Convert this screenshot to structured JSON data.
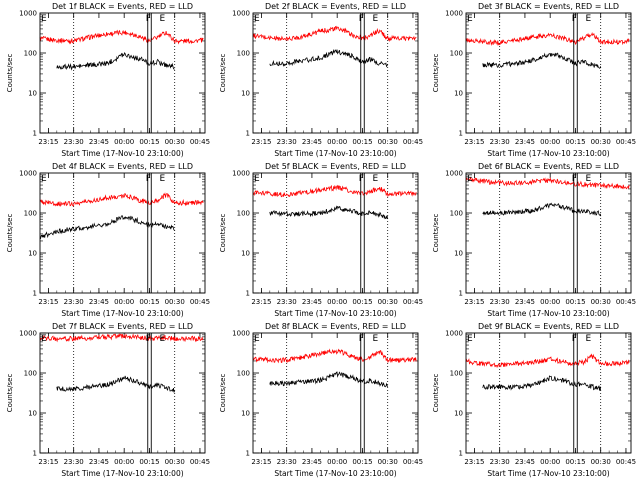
{
  "chart_data": [
    {
      "type": "line",
      "title": "Det 1f BLACK = Events, RED = LLD",
      "xlabel": "Start Time (17-Nov-10 23:10:00)",
      "ylabel": "Counts/sec",
      "y_scale": "log",
      "ylim": [
        1,
        1000
      ],
      "xlim": [
        "23:10",
        "00:48"
      ],
      "x_ticks": [
        "23:15",
        "23:30",
        "23:45",
        "00:00",
        "00:15",
        "00:30",
        "00:45"
      ],
      "y_ticks": [
        "1",
        "10",
        "100",
        "1000"
      ],
      "markers": [
        "E",
        "F",
        "E"
      ],
      "series": [
        {
          "color": "#ff0000",
          "x": [
            "23:10",
            "23:20",
            "23:30",
            "23:40",
            "23:50",
            "00:00",
            "00:05",
            "00:10",
            "00:15",
            "00:20",
            "00:25",
            "00:30",
            "00:40",
            "00:47"
          ],
          "values": [
            230,
            210,
            200,
            250,
            300,
            330,
            300,
            250,
            200,
            250,
            330,
            200,
            200,
            210
          ]
        },
        {
          "color": "#000000",
          "x": [
            "23:20",
            "23:30",
            "23:40",
            "23:50",
            "00:00",
            "00:05",
            "00:10",
            "00:15",
            "00:20",
            "00:25",
            "00:30"
          ],
          "values": [
            45,
            45,
            50,
            55,
            95,
            80,
            70,
            55,
            60,
            50,
            45
          ]
        }
      ]
    },
    {
      "type": "line",
      "title": "Det 2f BLACK = Events, RED = LLD",
      "xlabel": "Start Time (17-Nov-10 23:10:00)",
      "ylabel": "Counts/sec",
      "y_scale": "log",
      "ylim": [
        1,
        1000
      ],
      "xlim": [
        "23:10",
        "00:48"
      ],
      "x_ticks": [
        "23:15",
        "23:30",
        "23:45",
        "00:00",
        "00:15",
        "00:30",
        "00:45"
      ],
      "y_ticks": [
        "1",
        "10",
        "100",
        "1000"
      ],
      "markers": [
        "E",
        "F",
        "E"
      ],
      "series": [
        {
          "color": "#ff0000",
          "x": [
            "23:10",
            "23:20",
            "23:30",
            "23:40",
            "23:50",
            "00:00",
            "00:05",
            "00:10",
            "00:15",
            "00:20",
            "00:25",
            "00:30",
            "00:40",
            "00:47"
          ],
          "values": [
            270,
            240,
            220,
            260,
            350,
            410,
            350,
            270,
            230,
            280,
            360,
            230,
            230,
            240
          ]
        },
        {
          "color": "#000000",
          "x": [
            "23:20",
            "23:30",
            "23:40",
            "23:50",
            "00:00",
            "00:05",
            "00:10",
            "00:15",
            "00:20",
            "00:25",
            "00:30"
          ],
          "values": [
            55,
            55,
            65,
            75,
            110,
            95,
            80,
            60,
            70,
            55,
            50
          ]
        }
      ]
    },
    {
      "type": "line",
      "title": "Det 3f BLACK = Events, RED = LLD",
      "xlabel": "Start Time (17-Nov-10 23:10:00)",
      "ylabel": "Counts/sec",
      "y_scale": "log",
      "ylim": [
        1,
        1000
      ],
      "xlim": [
        "23:10",
        "00:48"
      ],
      "x_ticks": [
        "23:15",
        "23:30",
        "23:45",
        "00:00",
        "00:15",
        "00:30",
        "00:45"
      ],
      "y_ticks": [
        "1",
        "10",
        "100",
        "1000"
      ],
      "markers": [
        "E",
        "F",
        "E"
      ],
      "series": [
        {
          "color": "#ff0000",
          "x": [
            "23:10",
            "23:20",
            "23:30",
            "23:40",
            "23:50",
            "00:00",
            "00:05",
            "00:10",
            "00:15",
            "00:20",
            "00:25",
            "00:30",
            "00:40",
            "00:47"
          ],
          "values": [
            210,
            190,
            180,
            210,
            250,
            280,
            250,
            220,
            190,
            230,
            300,
            190,
            190,
            200
          ]
        },
        {
          "color": "#000000",
          "x": [
            "23:20",
            "23:30",
            "23:40",
            "23:50",
            "00:00",
            "00:05",
            "00:10",
            "00:15",
            "00:20",
            "00:25",
            "00:30"
          ],
          "values": [
            50,
            50,
            55,
            65,
            95,
            85,
            70,
            55,
            60,
            50,
            45
          ]
        }
      ]
    },
    {
      "type": "line",
      "title": "Det 4f BLACK = Events, RED = LLD",
      "xlabel": "Start Time (17-Nov-10 23:10:00)",
      "ylabel": "Counts/sec",
      "y_scale": "log",
      "ylim": [
        1,
        1000
      ],
      "xlim": [
        "23:10",
        "00:48"
      ],
      "x_ticks": [
        "23:15",
        "23:30",
        "23:45",
        "00:00",
        "00:15",
        "00:30",
        "00:45"
      ],
      "y_ticks": [
        "1",
        "10",
        "100",
        "1000"
      ],
      "markers": [
        "E",
        "F",
        "E"
      ],
      "series": [
        {
          "color": "#ff0000",
          "x": [
            "23:10",
            "23:20",
            "23:30",
            "23:40",
            "23:50",
            "00:00",
            "00:05",
            "00:10",
            "00:15",
            "00:20",
            "00:25",
            "00:30",
            "00:40",
            "00:47"
          ],
          "values": [
            190,
            170,
            170,
            200,
            240,
            270,
            240,
            200,
            180,
            210,
            280,
            180,
            180,
            190
          ]
        },
        {
          "color": "#000000",
          "x": [
            "23:10",
            "23:20",
            "23:30",
            "23:40",
            "23:50",
            "00:00",
            "00:05",
            "00:10",
            "00:15",
            "00:20",
            "00:25",
            "00:30"
          ],
          "values": [
            25,
            35,
            40,
            45,
            55,
            80,
            70,
            60,
            50,
            55,
            45,
            40
          ]
        }
      ]
    },
    {
      "type": "line",
      "title": "Det 5f BLACK = Events, RED = LLD",
      "xlabel": "Start Time (17-Nov-10 23:10:00)",
      "ylabel": "Counts/sec",
      "y_scale": "log",
      "ylim": [
        1,
        1000
      ],
      "xlim": [
        "23:10",
        "00:48"
      ],
      "x_ticks": [
        "23:15",
        "23:30",
        "23:45",
        "00:00",
        "00:15",
        "00:30",
        "00:45"
      ],
      "y_ticks": [
        "1",
        "10",
        "100",
        "1000"
      ],
      "markers": [
        "E",
        "F",
        "E"
      ],
      "series": [
        {
          "color": "#ff0000",
          "x": [
            "23:10",
            "23:20",
            "23:30",
            "23:40",
            "23:50",
            "00:00",
            "00:05",
            "00:10",
            "00:15",
            "00:20",
            "00:25",
            "00:30",
            "00:40",
            "00:47"
          ],
          "values": [
            320,
            300,
            290,
            320,
            380,
            430,
            390,
            330,
            300,
            340,
            430,
            300,
            300,
            310
          ]
        },
        {
          "color": "#000000",
          "x": [
            "23:20",
            "23:30",
            "23:40",
            "23:50",
            "00:00",
            "00:05",
            "00:10",
            "00:15",
            "00:20",
            "00:25",
            "00:30"
          ],
          "values": [
            100,
            95,
            95,
            100,
            130,
            120,
            110,
            95,
            100,
            90,
            80
          ]
        }
      ]
    },
    {
      "type": "line",
      "title": "Det 6f BLACK = Events, RED = LLD",
      "xlabel": "Start Time (17-Nov-10 23:10:00)",
      "ylabel": "Counts/sec",
      "y_scale": "log",
      "ylim": [
        1,
        1000
      ],
      "xlim": [
        "23:10",
        "00:48"
      ],
      "x_ticks": [
        "23:15",
        "23:30",
        "23:45",
        "00:00",
        "00:15",
        "00:30",
        "00:45"
      ],
      "y_ticks": [
        "1",
        "10",
        "100",
        "1000"
      ],
      "markers": [
        "E",
        "F",
        "E"
      ],
      "series": [
        {
          "color": "#ff0000",
          "x": [
            "23:10",
            "23:20",
            "23:30",
            "23:40",
            "23:50",
            "00:00",
            "00:05",
            "00:10",
            "00:15",
            "00:20",
            "00:25",
            "00:30",
            "00:40",
            "00:47"
          ],
          "values": [
            700,
            620,
            560,
            560,
            600,
            650,
            620,
            570,
            540,
            520,
            500,
            480,
            470,
            460
          ]
        },
        {
          "color": "#000000",
          "x": [
            "23:20",
            "23:30",
            "23:40",
            "23:50",
            "00:00",
            "00:05",
            "00:10",
            "00:15",
            "00:20",
            "00:25",
            "00:30"
          ],
          "values": [
            100,
            100,
            105,
            115,
            160,
            150,
            130,
            110,
            115,
            105,
            95
          ]
        }
      ]
    },
    {
      "type": "line",
      "title": "Det 7f BLACK = Events, RED = LLD",
      "xlabel": "Start Time (17-Nov-10 23:10:00)",
      "ylabel": "Counts/sec",
      "y_scale": "log",
      "ylim": [
        1,
        1000
      ],
      "xlim": [
        "23:10",
        "00:48"
      ],
      "x_ticks": [
        "23:15",
        "23:30",
        "23:45",
        "00:00",
        "00:15",
        "00:30",
        "00:45"
      ],
      "y_ticks": [
        "1",
        "10",
        "100",
        "1000"
      ],
      "markers": [
        "E",
        "F",
        "E"
      ],
      "series": [
        {
          "color": "#ff0000",
          "x": [
            "23:10",
            "23:20",
            "23:30",
            "23:40",
            "23:50",
            "00:00",
            "00:05",
            "00:10",
            "00:15",
            "00:20",
            "00:25",
            "00:30",
            "00:40",
            "00:47"
          ],
          "values": [
            750,
            720,
            720,
            760,
            800,
            830,
            800,
            760,
            730,
            740,
            780,
            720,
            720,
            730
          ]
        },
        {
          "color": "#000000",
          "x": [
            "23:20",
            "23:30",
            "23:40",
            "23:50",
            "00:00",
            "00:05",
            "00:10",
            "00:15",
            "00:20",
            "00:25",
            "00:30"
          ],
          "values": [
            40,
            40,
            45,
            50,
            75,
            65,
            55,
            45,
            50,
            42,
            38
          ]
        }
      ]
    },
    {
      "type": "line",
      "title": "Det 8f BLACK = Events, RED = LLD",
      "xlabel": "Start Time (17-Nov-10 23:10:00)",
      "ylabel": "Counts/sec",
      "y_scale": "log",
      "ylim": [
        1,
        1000
      ],
      "xlim": [
        "23:10",
        "00:48"
      ],
      "x_ticks": [
        "23:15",
        "23:30",
        "23:45",
        "00:00",
        "00:15",
        "00:30",
        "00:45"
      ],
      "y_ticks": [
        "1",
        "10",
        "100",
        "1000"
      ],
      "markers": [
        "E",
        "F",
        "E"
      ],
      "series": [
        {
          "color": "#ff0000",
          "x": [
            "23:10",
            "23:20",
            "23:30",
            "23:40",
            "23:50",
            "00:00",
            "00:05",
            "00:10",
            "00:15",
            "00:20",
            "00:25",
            "00:30",
            "00:40",
            "00:47"
          ],
          "values": [
            230,
            210,
            210,
            250,
            310,
            350,
            310,
            250,
            220,
            260,
            340,
            210,
            210,
            220
          ]
        },
        {
          "color": "#000000",
          "x": [
            "23:20",
            "23:30",
            "23:40",
            "23:50",
            "00:00",
            "00:05",
            "00:10",
            "00:15",
            "00:20",
            "00:25",
            "00:30"
          ],
          "values": [
            55,
            55,
            60,
            65,
            95,
            85,
            75,
            60,
            65,
            55,
            50
          ]
        }
      ]
    },
    {
      "type": "line",
      "title": "Det 9f BLACK = Events, RED = LLD",
      "xlabel": "Start Time (17-Nov-10 23:10:00)",
      "ylabel": "Counts/sec",
      "y_scale": "log",
      "ylim": [
        1,
        1000
      ],
      "xlim": [
        "23:10",
        "00:48"
      ],
      "x_ticks": [
        "23:15",
        "23:30",
        "23:45",
        "00:00",
        "00:15",
        "00:30",
        "00:45"
      ],
      "y_ticks": [
        "1",
        "10",
        "100",
        "1000"
      ],
      "markers": [
        "E",
        "F",
        "E"
      ],
      "series": [
        {
          "color": "#ff0000",
          "x": [
            "23:10",
            "23:20",
            "23:30",
            "23:40",
            "23:50",
            "00:00",
            "00:05",
            "00:10",
            "00:15",
            "00:20",
            "00:25",
            "00:30",
            "00:40",
            "00:47"
          ],
          "values": [
            200,
            170,
            160,
            170,
            190,
            220,
            200,
            180,
            170,
            190,
            260,
            170,
            170,
            180
          ]
        },
        {
          "color": "#000000",
          "x": [
            "23:20",
            "23:30",
            "23:40",
            "23:50",
            "00:00",
            "00:05",
            "00:10",
            "00:15",
            "00:20",
            "00:25",
            "00:30"
          ],
          "values": [
            45,
            45,
            45,
            50,
            75,
            70,
            60,
            50,
            55,
            45,
            40
          ]
        }
      ]
    }
  ]
}
